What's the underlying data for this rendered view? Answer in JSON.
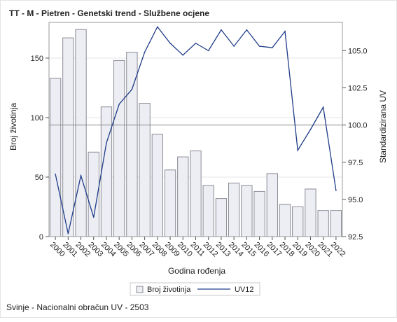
{
  "chart_data": {
    "type": "bar+line",
    "title": "TT - M - Pietren - Genetski trend - Službene ocjene",
    "xlabel": "Godina rođenja",
    "ylabel_left": "Broj životinja",
    "ylabel_right": "Standardizirana UV",
    "categories": [
      "2000",
      "2001",
      "2002",
      "2003",
      "2004",
      "2005",
      "2006",
      "2007",
      "2008",
      "2009",
      "2010",
      "2011",
      "2012",
      "2013",
      "2014",
      "2015",
      "2016",
      "2017",
      "2018",
      "2019",
      "2020",
      "2021",
      "2022"
    ],
    "series": [
      {
        "name": "Broj životinja",
        "type": "bar",
        "axis": "left",
        "values": [
          133,
          167,
          174,
          71,
          109,
          148,
          155,
          112,
          86,
          56,
          67,
          72,
          43,
          32,
          45,
          43,
          38,
          53,
          27,
          25,
          40,
          22,
          22
        ]
      },
      {
        "name": "UV12",
        "type": "line",
        "axis": "right",
        "values": [
          96.7,
          92.7,
          96.6,
          93.8,
          98.8,
          101.4,
          102.4,
          104.9,
          106.6,
          105.5,
          104.7,
          105.5,
          105.0,
          106.4,
          105.3,
          106.4,
          105.3,
          105.2,
          106.3,
          98.3,
          99.7,
          101.2,
          95.6
        ]
      }
    ],
    "ylim_left": [
      0,
      180
    ],
    "yticks_left": [
      0,
      50,
      100,
      150
    ],
    "ylim_right": [
      92.5,
      106.9
    ],
    "yticks_right": [
      "92.5",
      "95.0",
      "97.5",
      "100.0",
      "102.5",
      "105.0"
    ],
    "reference_line_right": 100.0,
    "legend_position": "bottom",
    "colors": {
      "bar_fill": "#eceef4",
      "bar_stroke": "#8b8b95",
      "line": "#1f3c88",
      "ref_line": "#888888",
      "grid": "#e6e6e6"
    }
  },
  "footnote": "Svinje - Nacionalni obračun UV - 2503"
}
